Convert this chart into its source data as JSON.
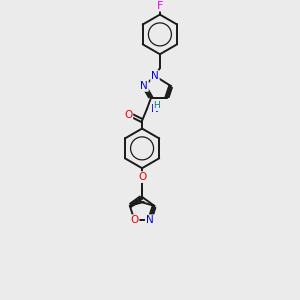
{
  "background_color": "#ebebeb",
  "bond_color": "#1a1a1a",
  "atom_colors": {
    "N": "#0000ee",
    "O": "#ee0000",
    "F": "#ee00ee",
    "H": "#008080",
    "C": "#1a1a1a"
  },
  "figsize": [
    3.0,
    3.0
  ],
  "dpi": 100,
  "lw": 1.4,
  "fs": 7.5
}
